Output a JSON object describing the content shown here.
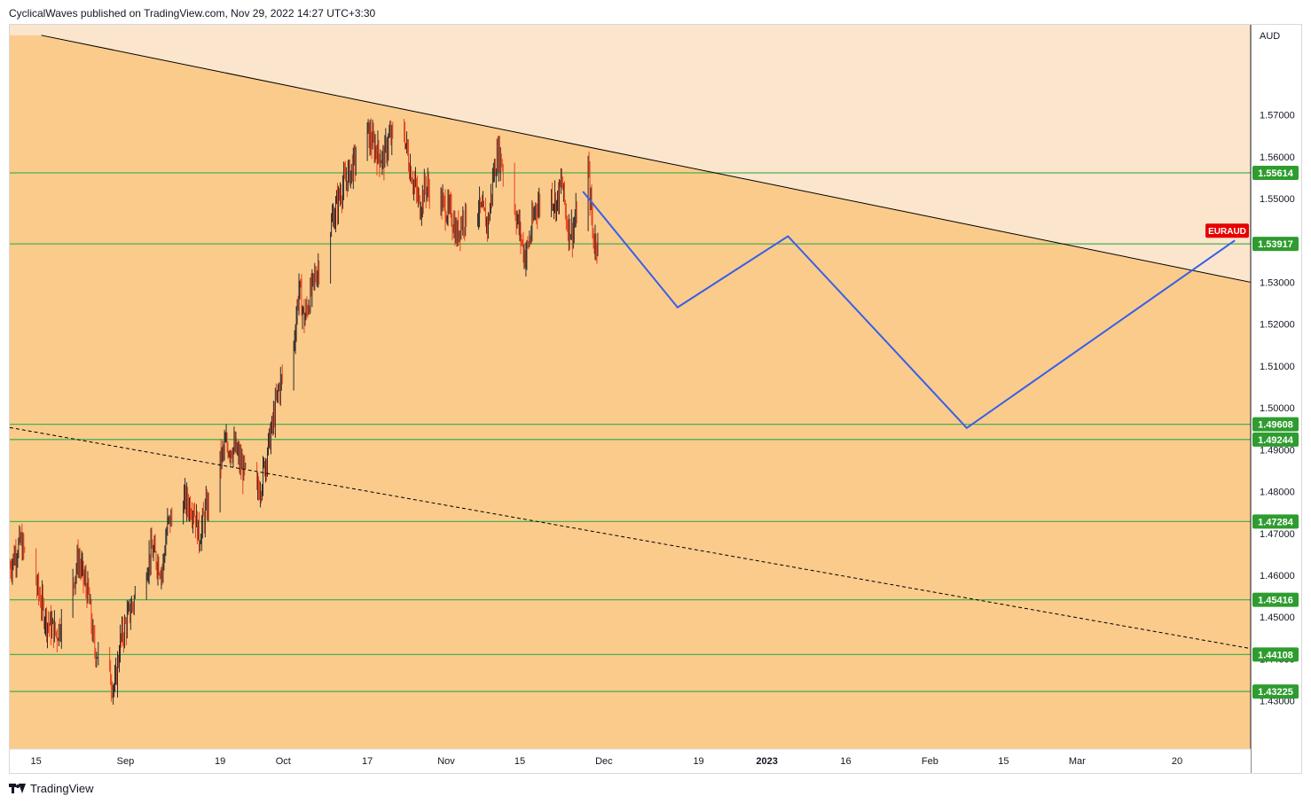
{
  "header": {
    "credit": "CyclicalWaves published on TradingView.com, Nov 29, 2022 14:27 UTC+3:30"
  },
  "footer": {
    "brand": "TradingView"
  },
  "colors": {
    "zone_dark": "#fbcb8c",
    "zone_light": "#fce5cd",
    "candle_up": "#2b2b2b",
    "candle_down": "#e8421c",
    "level_line": "#4caf50",
    "level_tag": "#2e9c2f",
    "projection": "#3560e8",
    "trendline": "#000000",
    "symbol_tag": "#e60000"
  },
  "chart_data": {
    "type": "candlestick",
    "symbol": "EURAUD",
    "currency_label": "AUD",
    "y_range": [
      1.4185,
      1.5915
    ],
    "y_ticks": [
      "1.43000",
      "1.44000",
      "1.45000",
      "1.46000",
      "1.47000",
      "1.48000",
      "1.49000",
      "1.50000",
      "1.51000",
      "1.52000",
      "1.53000",
      "1.54000",
      "1.55000",
      "1.56000",
      "1.57000"
    ],
    "x_range": [
      "2022-08-10",
      "2023-04-03"
    ],
    "x_ticks": [
      {
        "date": "2022-08-15",
        "label": "15"
      },
      {
        "date": "2022-09-01",
        "label": "Sep"
      },
      {
        "date": "2022-09-19",
        "label": "19"
      },
      {
        "date": "2022-10-01",
        "label": "Oct"
      },
      {
        "date": "2022-10-17",
        "label": "17"
      },
      {
        "date": "2022-11-01",
        "label": "Nov"
      },
      {
        "date": "2022-11-15",
        "label": "15"
      },
      {
        "date": "2022-12-01",
        "label": "Dec"
      },
      {
        "date": "2022-12-19",
        "label": "19"
      },
      {
        "date": "2023-01-01",
        "label": "2023",
        "bold": true
      },
      {
        "date": "2023-01-16",
        "label": "16"
      },
      {
        "date": "2023-02-01",
        "label": "Feb"
      },
      {
        "date": "2023-02-15",
        "label": "15"
      },
      {
        "date": "2023-03-01",
        "label": "Mar"
      },
      {
        "date": "2023-03-20",
        "label": "20"
      }
    ],
    "price_path": [
      [
        "2022-08-10",
        1.462
      ],
      [
        "2022-08-12",
        1.468
      ],
      [
        "2022-08-15",
        1.458
      ],
      [
        "2022-08-17",
        1.449
      ],
      [
        "2022-08-19",
        1.446
      ],
      [
        "2022-08-22",
        1.458
      ],
      [
        "2022-08-23",
        1.464
      ],
      [
        "2022-08-25",
        1.455
      ],
      [
        "2022-08-26",
        1.443
      ],
      [
        "2022-08-29",
        1.436
      ],
      [
        "2022-08-30",
        1.433
      ],
      [
        "2022-08-31",
        1.444
      ],
      [
        "2022-09-02",
        1.452
      ],
      [
        "2022-09-05",
        1.462
      ],
      [
        "2022-09-06",
        1.466
      ],
      [
        "2022-09-08",
        1.461
      ],
      [
        "2022-09-09",
        1.472
      ],
      [
        "2022-09-12",
        1.478
      ],
      [
        "2022-09-14",
        1.476
      ],
      [
        "2022-09-15",
        1.469
      ],
      [
        "2022-09-16",
        1.474
      ],
      [
        "2022-09-19",
        1.487
      ],
      [
        "2022-09-20",
        1.491
      ],
      [
        "2022-09-22",
        1.49
      ],
      [
        "2022-09-23",
        1.486
      ],
      [
        "2022-09-26",
        1.479
      ],
      [
        "2022-09-27",
        1.483
      ],
      [
        "2022-09-28",
        1.49
      ],
      [
        "2022-09-29",
        1.496
      ],
      [
        "2022-09-30",
        1.504
      ],
      [
        "2022-10-03",
        1.515
      ],
      [
        "2022-10-04",
        1.529
      ],
      [
        "2022-10-05",
        1.521
      ],
      [
        "2022-10-07",
        1.531
      ],
      [
        "2022-10-10",
        1.543
      ],
      [
        "2022-10-12",
        1.552
      ],
      [
        "2022-10-14",
        1.557
      ],
      [
        "2022-10-17",
        1.566
      ],
      [
        "2022-10-18",
        1.563
      ],
      [
        "2022-10-20",
        1.559
      ],
      [
        "2022-10-21",
        1.564
      ],
      [
        "2022-10-24",
        1.566
      ],
      [
        "2022-10-25",
        1.558
      ],
      [
        "2022-10-27",
        1.548
      ],
      [
        "2022-10-28",
        1.553
      ],
      [
        "2022-10-31",
        1.549
      ],
      [
        "2022-11-02",
        1.546
      ],
      [
        "2022-11-03",
        1.541
      ],
      [
        "2022-11-04",
        1.545
      ],
      [
        "2022-11-07",
        1.548
      ],
      [
        "2022-11-09",
        1.544
      ],
      [
        "2022-11-10",
        1.556
      ],
      [
        "2022-11-11",
        1.561
      ],
      [
        "2022-11-14",
        1.548
      ],
      [
        "2022-11-15",
        1.542
      ],
      [
        "2022-11-16",
        1.536
      ],
      [
        "2022-11-17",
        1.541
      ],
      [
        "2022-11-18",
        1.548
      ],
      [
        "2022-11-21",
        1.551
      ],
      [
        "2022-11-22",
        1.549
      ],
      [
        "2022-11-23",
        1.554
      ],
      [
        "2022-11-24",
        1.544
      ],
      [
        "2022-11-25",
        1.542
      ],
      [
        "2022-11-28",
        1.557
      ],
      [
        "2022-11-29",
        1.54
      ]
    ],
    "horizontal_levels": [
      "1.55614",
      "1.53917",
      "1.49608",
      "1.49244",
      "1.47284",
      "1.45416",
      "1.44108",
      "1.43225"
    ],
    "trendlines": [
      {
        "style": "solid",
        "from": [
          "2022-08-16",
          1.589
        ],
        "to": [
          "2023-04-03",
          1.53
        ]
      },
      {
        "style": "dashed",
        "from": [
          "2022-08-10",
          1.4953
        ],
        "to": [
          "2023-04-03",
          1.4425
        ]
      }
    ],
    "projection": [
      [
        "2022-11-27",
        1.5517
      ],
      [
        "2022-12-15",
        1.524
      ],
      [
        "2023-01-05",
        1.541
      ],
      [
        "2023-02-08",
        1.4952
      ],
      [
        "2023-03-31",
        1.54
      ]
    ],
    "last_price_tag": {
      "label": "EURAUD",
      "value": 1.54
    },
    "zones": {
      "split_line": "solid_trendline",
      "above": "zone_light",
      "below": "zone_dark"
    },
    "grid": false
  }
}
